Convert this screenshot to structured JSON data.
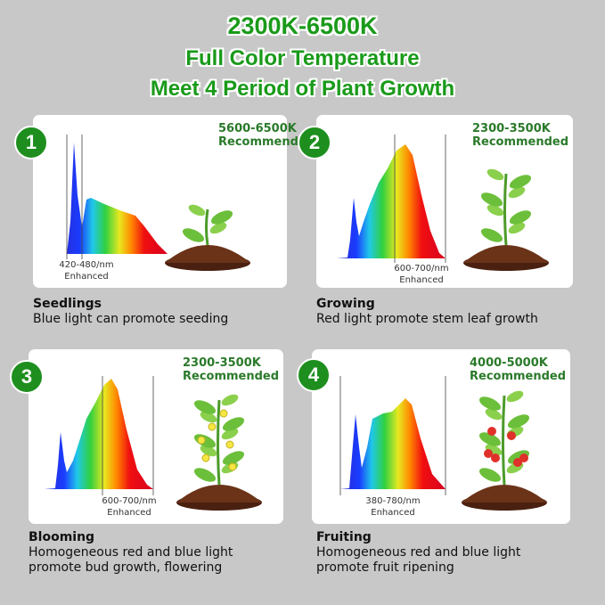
{
  "header": {
    "line1": "2300K-6500K",
    "line2": "Full Color Temperature",
    "line3": "Meet 4 Period of Plant Growth"
  },
  "colors": {
    "accent": "#1e8f1e",
    "title_green": "#1a9a1a",
    "background": "#c8c8c8",
    "soil": "#5a2a14"
  },
  "stages": [
    {
      "number": "1",
      "temp": "5600-6500K",
      "recommended": "Recommended",
      "range": "420-480/nm",
      "enhanced": "Enhanced",
      "name": "Seedlings",
      "desc1": "Blue light can promote seeding",
      "desc2": "",
      "plant_icon": "seedling-icon"
    },
    {
      "number": "2",
      "temp": "2300-3500K",
      "recommended": "Recommended",
      "range": "600-700/nm",
      "enhanced": "Enhanced",
      "name": "Growing",
      "desc1": "Red light promote stem leaf growth",
      "desc2": "",
      "plant_icon": "growing-plant-icon"
    },
    {
      "number": "3",
      "temp": "2300-3500K",
      "recommended": "Recommended",
      "range": "600-700/nm",
      "enhanced": "Enhanced",
      "name": "Blooming",
      "desc1": "Homogeneous red and blue light",
      "desc2": "promote bud growth, flowering",
      "plant_icon": "flowering-plant-icon"
    },
    {
      "number": "4",
      "temp": "4000-5000K",
      "recommended": "Recommended",
      "range": "380-780/nm",
      "enhanced": "Enhanced",
      "name": "Fruiting",
      "desc1": "Homogeneous red and blue light",
      "desc2": "promote fruit ripening",
      "plant_icon": "tomato-plant-icon"
    }
  ]
}
